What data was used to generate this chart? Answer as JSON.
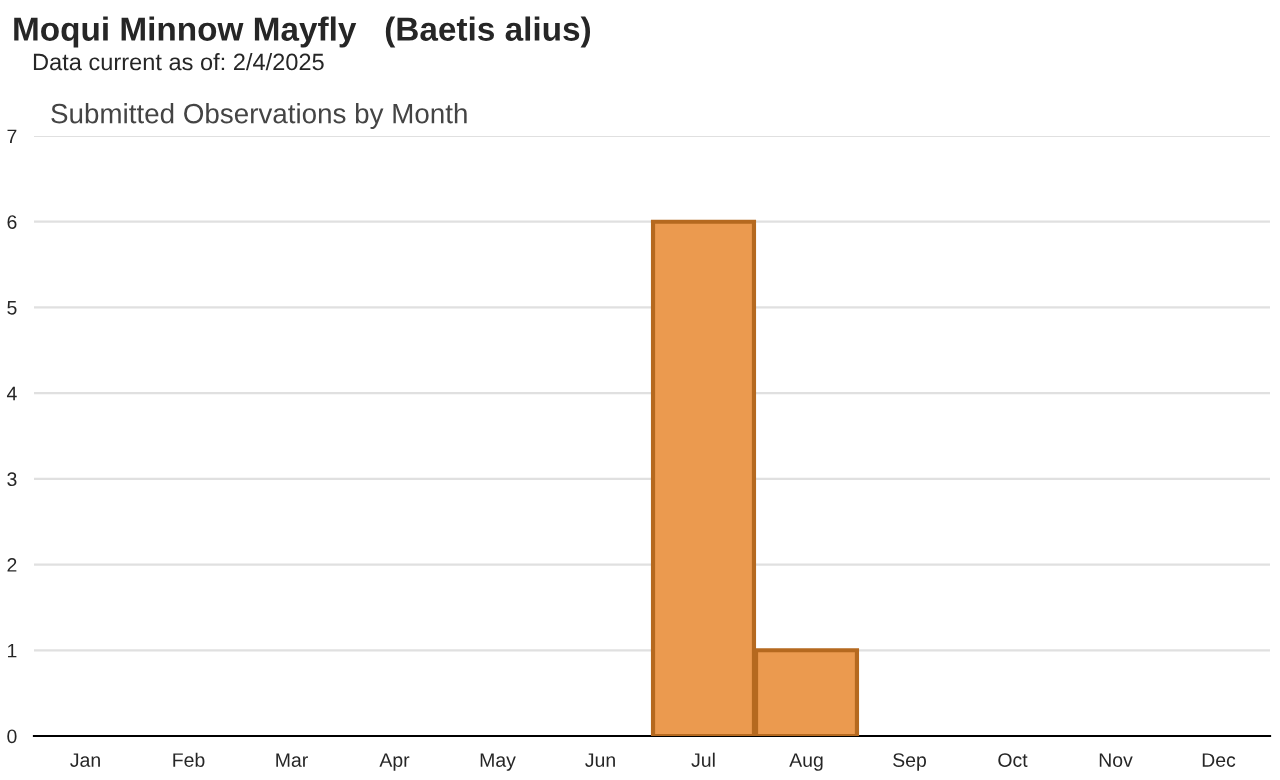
{
  "chart_data": {
    "type": "bar",
    "title": "Moqui Minnow Mayfly   (Baetis alius)",
    "subtitle": "Data current as of: 2/4/2025",
    "annotations": [
      "Submitted Observations by Month"
    ],
    "categories": [
      "Jan",
      "Feb",
      "Mar",
      "Apr",
      "May",
      "Jun",
      "Jul",
      "Aug",
      "Sep",
      "Oct",
      "Nov",
      "Dec"
    ],
    "values": [
      0,
      0,
      0,
      0,
      0,
      0,
      6,
      1,
      0,
      0,
      0,
      0
    ],
    "color": "#eb9a4f",
    "ylim": [
      0,
      7
    ],
    "yticks": [
      0,
      1,
      2,
      3,
      4,
      5,
      6,
      7
    ],
    "grid": "y"
  }
}
